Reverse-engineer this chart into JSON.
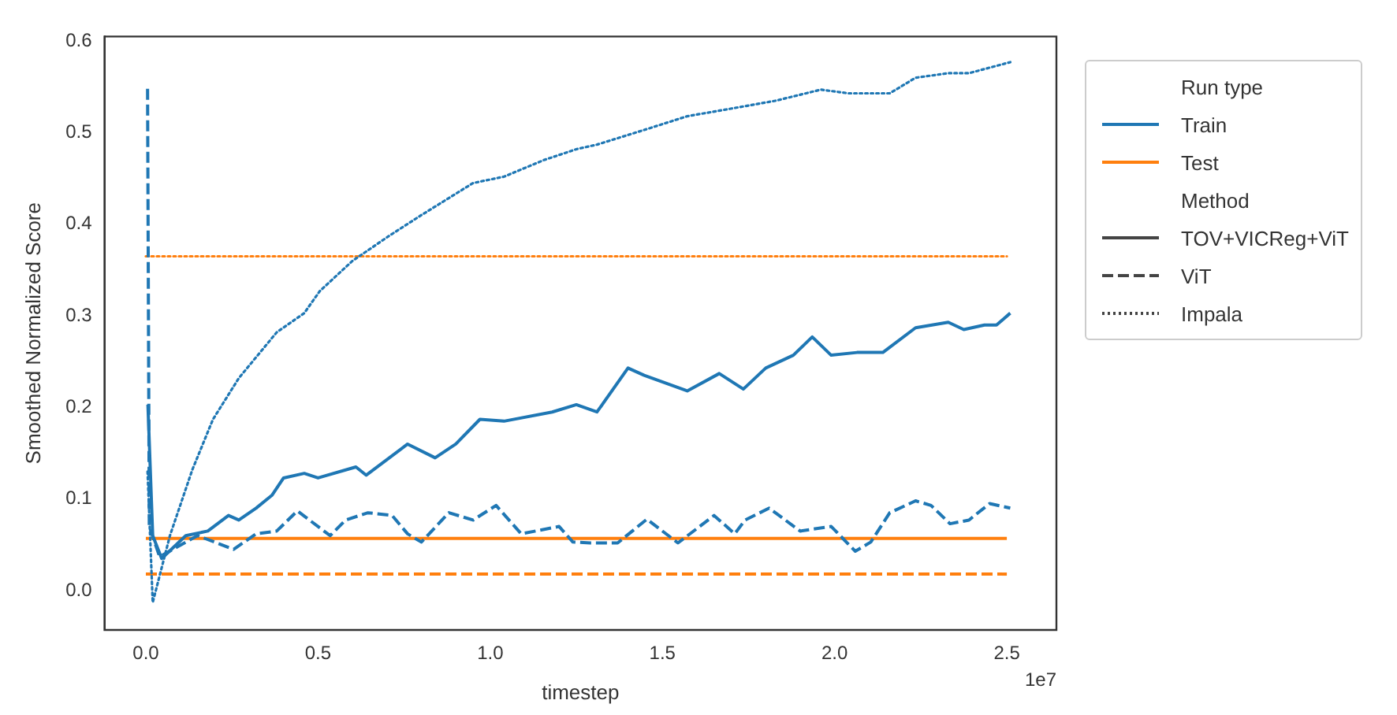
{
  "chart_data": {
    "type": "line",
    "xlabel": "timestep",
    "ylabel": "Smoothed Normalized Score",
    "legend_title": "Run type",
    "legend": "right",
    "annotations": [
      "Method",
      "1e7"
    ],
    "xlim": [
      -0.12,
      2.644
    ],
    "ylim": [
      -0.043,
      0.605
    ],
    "xticks": [
      {
        "value": 0,
        "label": "0.0"
      },
      0.5,
      {
        "value": 1,
        "label": "1.0"
      },
      1.5,
      {
        "value": 2,
        "label": "2.0"
      },
      2.5
    ],
    "yticks": [
      {
        "value": 0,
        "label": "0.0"
      },
      0.1,
      0.2,
      0.3,
      0.4,
      0.5,
      0.6
    ],
    "series": [
      {
        "color": "#1f77b4",
        "line_style": "solid",
        "x": [
          0.006,
          0.02,
          0.046,
          0.116,
          0.18,
          0.24,
          0.27,
          0.32,
          0.366,
          0.4,
          0.46,
          0.5,
          0.61,
          0.64,
          0.76,
          0.84,
          0.9,
          0.97,
          1.04,
          1.18,
          1.25,
          1.31,
          1.4,
          1.447,
          1.572,
          1.665,
          1.735,
          1.8,
          1.88,
          1.935,
          1.99,
          2.065,
          2.14,
          2.235,
          2.33,
          2.375,
          2.435,
          2.47,
          2.51
        ],
        "values": [
          0.203,
          0.06,
          0.035,
          0.06,
          0.065,
          0.082,
          0.077,
          0.09,
          0.104,
          0.123,
          0.128,
          0.123,
          0.135,
          0.126,
          0.16,
          0.145,
          0.16,
          0.187,
          0.185,
          0.195,
          0.203,
          0.195,
          0.243,
          0.235,
          0.218,
          0.237,
          0.22,
          0.243,
          0.257,
          0.277,
          0.257,
          0.26,
          0.26,
          0.287,
          0.293,
          0.285,
          0.29,
          0.29,
          0.303
        ]
      },
      {
        "color": "#1f77b4",
        "line_style": "dashed",
        "x": [
          0.005,
          0.01,
          0.04,
          0.15,
          0.255,
          0.32,
          0.38,
          0.44,
          0.535,
          0.58,
          0.645,
          0.715,
          0.76,
          0.8,
          0.88,
          0.95,
          1.017,
          1.09,
          1.2,
          1.24,
          1.29,
          1.37,
          1.455,
          1.545,
          1.65,
          1.71,
          1.74,
          1.81,
          1.9,
          1.99,
          2.06,
          2.105,
          2.16,
          2.235,
          2.28,
          2.335,
          2.39,
          2.45,
          2.51
        ],
        "values": [
          0.548,
          0.07,
          0.037,
          0.06,
          0.045,
          0.062,
          0.065,
          0.087,
          0.06,
          0.077,
          0.085,
          0.082,
          0.062,
          0.053,
          0.085,
          0.077,
          0.093,
          0.062,
          0.07,
          0.053,
          0.052,
          0.052,
          0.078,
          0.052,
          0.082,
          0.062,
          0.077,
          0.09,
          0.065,
          0.07,
          0.043,
          0.053,
          0.085,
          0.098,
          0.093,
          0.073,
          0.077,
          0.095,
          0.09
        ]
      },
      {
        "color": "#1f77b4",
        "line_style": "dotted",
        "x": [
          0.005,
          0.02,
          0.07,
          0.135,
          0.195,
          0.27,
          0.38,
          0.46,
          0.505,
          0.6,
          0.705,
          0.8,
          0.95,
          1.04,
          1.155,
          1.25,
          1.31,
          1.447,
          1.572,
          1.68,
          1.83,
          1.96,
          2.04,
          2.16,
          2.235,
          2.33,
          2.39,
          2.51
        ],
        "values": [
          0.13,
          -0.013,
          0.06,
          0.132,
          0.187,
          0.232,
          0.282,
          0.303,
          0.327,
          0.36,
          0.387,
          0.41,
          0.445,
          0.452,
          0.47,
          0.482,
          0.487,
          0.503,
          0.518,
          0.525,
          0.535,
          0.547,
          0.543,
          0.543,
          0.56,
          0.565,
          0.565,
          0.577
        ]
      },
      {
        "color": "#ff7f0e",
        "line_style": "solid",
        "x": [
          0,
          2.5
        ],
        "values": [
          0.057,
          0.057
        ]
      },
      {
        "color": "#ff7f0e",
        "line_style": "dashed",
        "x": [
          0,
          2.5
        ],
        "values": [
          0.018,
          0.018
        ]
      },
      {
        "color": "#ff7f0e",
        "line_style": "dotted",
        "x": [
          0,
          2.5
        ],
        "values": [
          0.365,
          0.365
        ]
      },
      {
        "name": "Train",
        "color": "#1f77b4"
      },
      {
        "name": "Test",
        "color": "#ff7f0e"
      },
      {
        "name": "TOV+VICReg+ViT",
        "color": "#444444",
        "line_style": "solid"
      },
      {
        "name": "ViT",
        "color": "#444444",
        "line_style": "dashed"
      },
      {
        "name": "Impala",
        "color": "#444444",
        "line_style": "dotted"
      }
    ]
  }
}
